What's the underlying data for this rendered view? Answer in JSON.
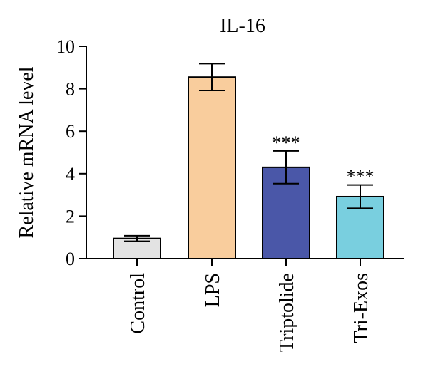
{
  "chart_data": {
    "type": "bar",
    "title": "IL-16",
    "ylabel": "Relative mRNA level",
    "xlabel": "",
    "ylim": [
      0,
      10
    ],
    "yticks": [
      "0",
      "2",
      "4",
      "6",
      "8",
      "10"
    ],
    "categories": [
      "Control",
      "LPS",
      "Triptolide",
      "Tri-Exos"
    ],
    "values": [
      0.95,
      8.55,
      4.3,
      2.92
    ],
    "errors": [
      0.13,
      0.63,
      0.77,
      0.55
    ],
    "annotations": [
      "",
      "",
      "***",
      "***"
    ],
    "colors": [
      "#e3e3e3",
      "#f9cd9d",
      "#4a57a8",
      "#79cfdf"
    ],
    "grid": false,
    "legend": "none"
  }
}
